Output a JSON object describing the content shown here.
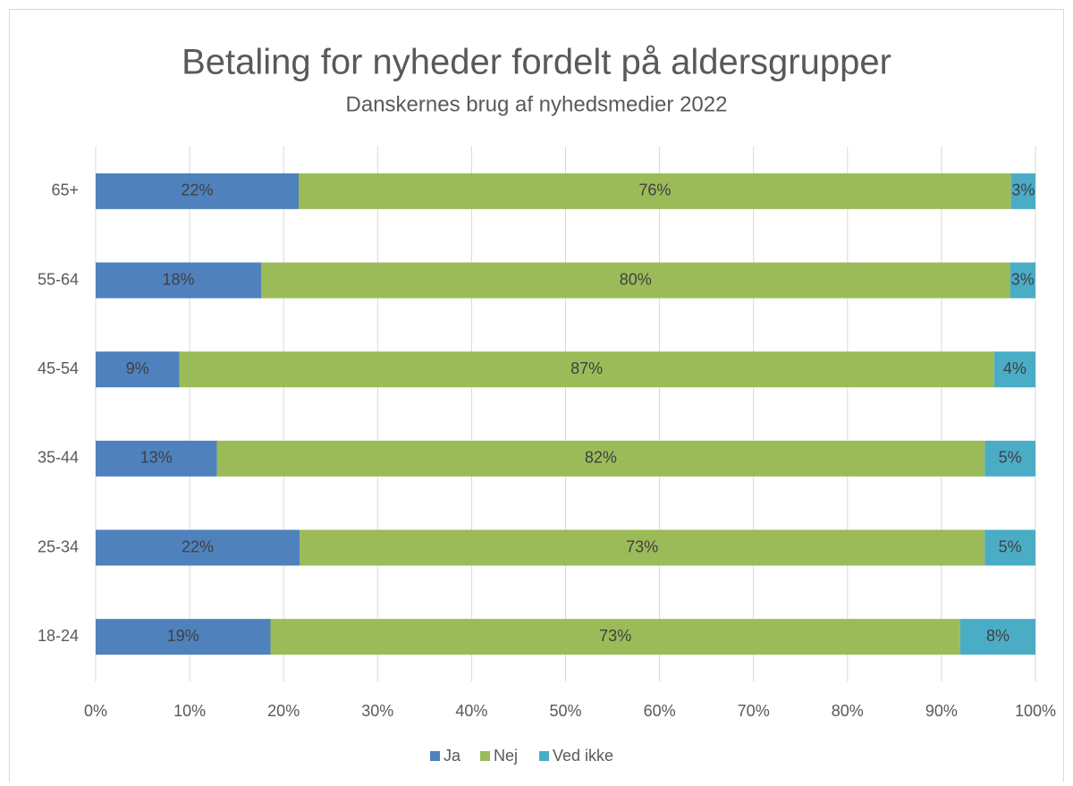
{
  "chart_data": {
    "type": "stacked_bar_horizontal",
    "title": "Betaling for nyheder fordelt på aldersgrupper",
    "subtitle": "Danskernes brug af nyhedsmedier 2022",
    "categories": [
      "65+",
      "55-64",
      "45-54",
      "35-44",
      "25-34",
      "18-24"
    ],
    "series": [
      {
        "name": "Ja",
        "color": "#4f81bd",
        "values": [
          21.6,
          17.6,
          8.9,
          12.9,
          21.7,
          18.6
        ],
        "value_labels": [
          "22%",
          "18%",
          "9%",
          "13%",
          "22%",
          "19%"
        ]
      },
      {
        "name": "Nej",
        "color": "#9bbb59",
        "values": [
          75.8,
          79.7,
          86.7,
          81.7,
          72.9,
          73.4
        ],
        "value_labels": [
          "76%",
          "80%",
          "87%",
          "82%",
          "73%",
          "73%"
        ]
      },
      {
        "name": "Ved ikke",
        "color": "#4bacc6",
        "values": [
          2.6,
          2.7,
          4.4,
          5.4,
          5.4,
          8.0
        ],
        "value_labels": [
          "3%",
          "3%",
          "4%",
          "5%",
          "5%",
          "8%"
        ]
      }
    ],
    "xlim": [
      0,
      100
    ],
    "xticks": [
      {
        "value": 0,
        "label": "0%"
      },
      {
        "value": 10,
        "label": "10%"
      },
      {
        "value": 20,
        "label": "20%"
      },
      {
        "value": 30,
        "label": "30%"
      },
      {
        "value": 40,
        "label": "40%"
      },
      {
        "value": 50,
        "label": "50%"
      },
      {
        "value": 60,
        "label": "60%"
      },
      {
        "value": 70,
        "label": "70%"
      },
      {
        "value": 80,
        "label": "80%"
      },
      {
        "value": 90,
        "label": "90%"
      },
      {
        "value": 100,
        "label": "100%"
      }
    ],
    "grid": true,
    "legend": "bottom"
  }
}
